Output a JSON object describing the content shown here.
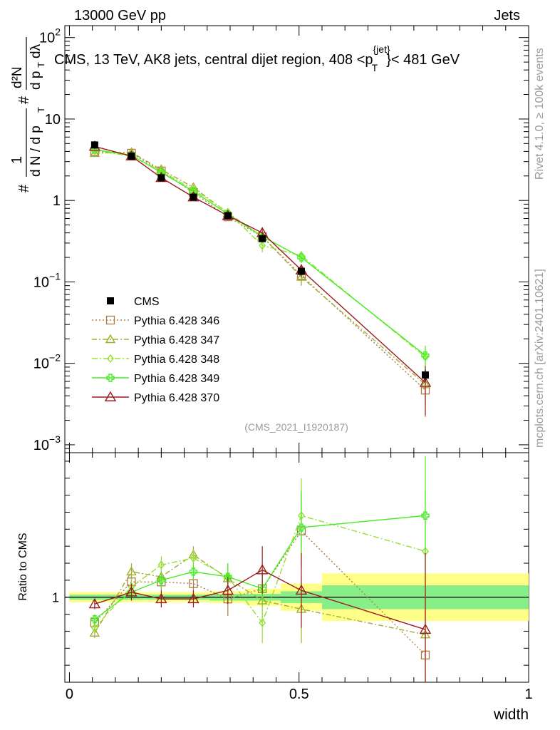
{
  "header": {
    "left": "13000 GeV pp",
    "right": "Jets"
  },
  "title": {
    "prefix": "CMS, 13 TeV, AK8 jets, central dijet region, 408 <p",
    "sup": "{jet}",
    "sub": "T",
    "suffix": "}< 481 GeV"
  },
  "side_labels": {
    "rivet": "Rivet 4.1.0, ≥ 100k events",
    "mcplots": "mcplots.cern.ch [arXiv:2401.10621]"
  },
  "watermark": "(CMS_2021_I1920187)",
  "y_main_label": {
    "hash1": "#",
    "one": "1",
    "dn": "d N / d p",
    "t": "T",
    "hash2": "#",
    "d2n": "d²N",
    "dpt": "d p",
    "t2": "T",
    "dl": "dλ"
  },
  "ratio_label": "Ratio to CMS",
  "x_label": "width",
  "chart_data": [
    {
      "type": "line",
      "scale": "log",
      "ylim": [
        0.0008,
        140
      ],
      "xlim": [
        -0.01,
        1.0
      ],
      "y_ticks": [
        {
          "value": 100,
          "base": "10",
          "exp": "2"
        },
        {
          "value": 10,
          "base": "10",
          "exp": ""
        },
        {
          "value": 1,
          "base": "1",
          "exp": ""
        },
        {
          "value": 0.1,
          "base": "10",
          "exp": "−1"
        },
        {
          "value": 0.01,
          "base": "10",
          "exp": "−2"
        },
        {
          "value": 0.001,
          "base": "10",
          "exp": "−3"
        }
      ],
      "x": [
        0.055,
        0.135,
        0.2,
        0.27,
        0.345,
        0.42,
        0.505,
        0.775
      ],
      "data": {
        "name": "CMS",
        "values": [
          4.8,
          3.5,
          1.9,
          1.1,
          0.65,
          0.34,
          0.135,
          0.0072
        ],
        "errors": [
          0.3,
          0.2,
          0.1,
          0.07,
          0.04,
          0.03,
          0.015,
          0.0012
        ]
      },
      "series": [
        {
          "name": "Pythia 6.428 346",
          "color": "#b07a44",
          "dash": "2,3",
          "marker": "square",
          "values": [
            4.0,
            3.8,
            2.3,
            1.25,
            0.63,
            0.36,
            0.12,
            0.0047
          ],
          "errors": [
            0.25,
            0.2,
            0.15,
            0.1,
            0.06,
            0.05,
            0.03,
            0.0025
          ]
        },
        {
          "name": "Pythia 6.428 347",
          "color": "#a0ad2c",
          "dash": "7,3,2,3",
          "marker": "triangle",
          "values": [
            3.8,
            3.9,
            2.4,
            1.45,
            0.7,
            0.36,
            0.115,
            0.0055
          ],
          "errors": [
            0.25,
            0.25,
            0.15,
            0.1,
            0.06,
            0.05,
            0.025,
            0.0025
          ]
        },
        {
          "name": "Pythia 6.428 348",
          "color": "#95e030",
          "dash": "8,3,2,3",
          "marker": "diamond",
          "values": [
            4.1,
            3.5,
            2.3,
            1.35,
            0.72,
            0.28,
            0.21,
            0.012
          ],
          "errors": [
            0.25,
            0.2,
            0.15,
            0.1,
            0.06,
            0.05,
            0.03,
            0.004
          ]
        },
        {
          "name": "Pythia 6.428 349",
          "color": "#44ee22",
          "dash": "",
          "marker": "cross",
          "values": [
            4.2,
            3.6,
            2.2,
            1.3,
            0.68,
            0.36,
            0.2,
            0.0125
          ],
          "errors": [
            0.25,
            0.2,
            0.15,
            0.1,
            0.06,
            0.05,
            0.03,
            0.004
          ]
        },
        {
          "name": "Pythia 6.428 370",
          "color": "#9b1c1c",
          "dash": "",
          "marker": "triangle-open",
          "values": [
            4.6,
            3.5,
            1.9,
            1.1,
            0.65,
            0.4,
            0.14,
            0.0058
          ],
          "errors": [
            0.3,
            0.2,
            0.12,
            0.08,
            0.05,
            0.06,
            0.025,
            0.0035
          ]
        }
      ]
    },
    {
      "type": "line",
      "scale": "linear",
      "ylim": [
        0.5,
        1.85
      ],
      "xlim": [
        -0.01,
        1.0
      ],
      "x_ticks": [
        0,
        0.5,
        1
      ],
      "x_tick_labels": [
        "0",
        "0.5",
        "1"
      ],
      "y_ticks": [
        1
      ],
      "y_tick_labels": [
        "1"
      ],
      "bands": [
        {
          "x0": 0.0,
          "x1": 0.165,
          "inner": 0.015,
          "outer": 0.03
        },
        {
          "x0": 0.165,
          "x1": 0.235,
          "inner": 0.015,
          "outer": 0.03
        },
        {
          "x0": 0.235,
          "x1": 0.305,
          "inner": 0.015,
          "outer": 0.03
        },
        {
          "x0": 0.305,
          "x1": 0.385,
          "inner": 0.02,
          "outer": 0.035
        },
        {
          "x0": 0.385,
          "x1": 0.46,
          "inner": 0.02,
          "outer": 0.05
        },
        {
          "x0": 0.46,
          "x1": 0.55,
          "inner": 0.035,
          "outer": 0.08
        },
        {
          "x0": 0.55,
          "x1": 1.0,
          "inner": 0.07,
          "outer": 0.14
        }
      ],
      "series": [
        {
          "name": "Pythia 6.428 346",
          "values": [
            0.85,
            1.09,
            1.09,
            1.08,
            0.99,
            1.05,
            1.39,
            0.66
          ],
          "errors": [
            0.03,
            0.05,
            0.05,
            0.05,
            0.1,
            0.1,
            0.22,
            0.35
          ]
        },
        {
          "name": "Pythia 6.428 347",
          "values": [
            0.79,
            1.15,
            1.12,
            1.25,
            1.11,
            0.98,
            0.93,
            0.78
          ],
          "errors": [
            0.03,
            0.05,
            0.05,
            0.05,
            0.08,
            0.1,
            0.2,
            0.35
          ]
        },
        {
          "name": "Pythia 6.428 348",
          "values": [
            0.82,
            1.06,
            1.19,
            1.23,
            1.12,
            0.85,
            1.48,
            1.27
          ],
          "errors": [
            0.03,
            0.05,
            0.05,
            0.05,
            0.08,
            0.12,
            0.22,
            0.35
          ]
        },
        {
          "name": "Pythia 6.428 349",
          "values": [
            0.87,
            1.03,
            1.1,
            1.15,
            1.12,
            1.05,
            1.41,
            1.48
          ],
          "errors": [
            0.03,
            0.05,
            0.05,
            0.05,
            0.08,
            0.1,
            0.22,
            0.35
          ]
        },
        {
          "name": "Pythia 6.428 370",
          "values": [
            0.96,
            1.03,
            0.99,
            0.99,
            1.04,
            1.16,
            1.04,
            0.81
          ],
          "errors": [
            0.03,
            0.05,
            0.05,
            0.05,
            0.08,
            0.14,
            0.22,
            0.45
          ]
        }
      ]
    }
  ]
}
